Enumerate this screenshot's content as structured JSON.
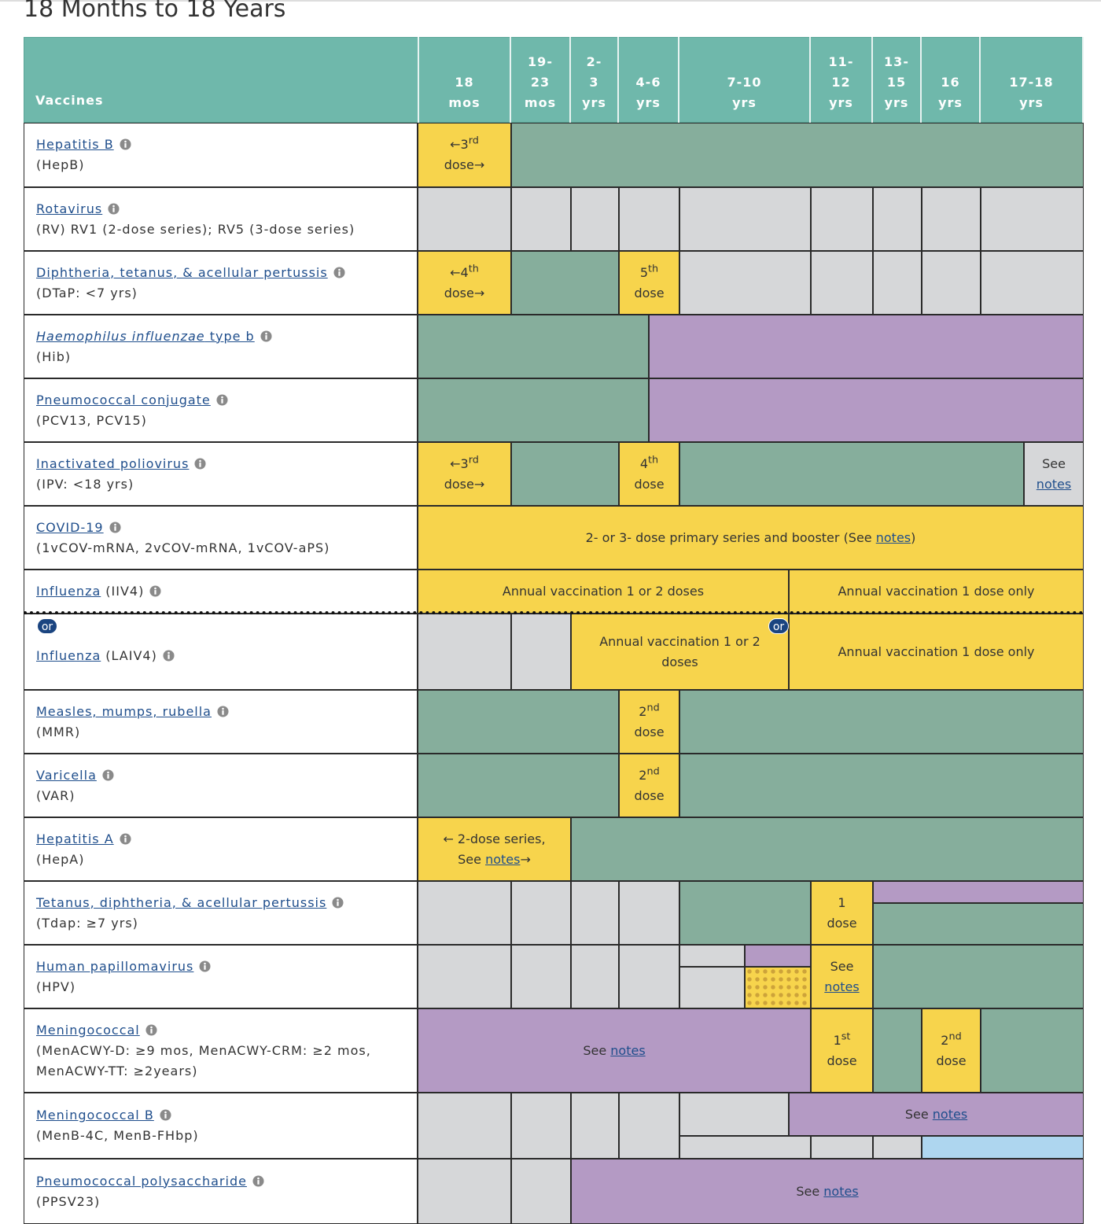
{
  "title": "18 Months to 18 Years",
  "header": {
    "vaccines": "Vaccines",
    "ages": [
      [
        "18",
        "mos"
      ],
      [
        "19-",
        "23",
        "mos"
      ],
      [
        "2-",
        "3",
        "yrs"
      ],
      [
        "4-6",
        "yrs"
      ],
      [
        "7-10",
        "yrs"
      ],
      [
        "11-",
        "12",
        "yrs"
      ],
      [
        "13-",
        "15",
        "yrs"
      ],
      [
        "16",
        "yrs"
      ],
      [
        "17-18",
        "yrs"
      ]
    ]
  },
  "rows": [
    {
      "name": "Hepatitis B",
      "abbr": "(HepB)",
      "cells": [
        {
          "lines": [
            [
              "←3",
              {
                "sup": "rd"
              }
            ],
            [
              "dose→"
            ]
          ]
        }
      ]
    },
    {
      "name": "Rotavirus",
      "abbr": "(RV) RV1 (2-dose series); RV5 (3-dose series)",
      "cells": []
    },
    {
      "name": "Diphtheria, tetanus, & acellular pertussis",
      "abbr": "(DTaP: <7 yrs)",
      "cells": [
        {
          "lines": [
            [
              "←4",
              {
                "sup": "th"
              }
            ],
            [
              "dose→"
            ]
          ]
        },
        {
          "lines": [
            [
              "5",
              {
                "sup": "th"
              }
            ],
            [
              "dose"
            ]
          ]
        }
      ]
    },
    {
      "name": {
        "italic": "Haemophilus influenzae",
        "text": " type b"
      },
      "abbr": "(Hib)",
      "cells": []
    },
    {
      "name": "Pneumococcal conjugate",
      "abbr": "(PCV13, PCV15)",
      "cells": []
    },
    {
      "name": "Inactivated poliovirus",
      "abbr": "(IPV: <18 yrs)",
      "cells": [
        {
          "lines": [
            [
              "←3",
              {
                "sup": "rd"
              }
            ],
            [
              "dose→"
            ]
          ]
        },
        {
          "lines": [
            [
              "4",
              {
                "sup": "th"
              }
            ],
            [
              "dose"
            ]
          ]
        },
        {
          "lines": [
            [
              "See"
            ],
            [
              {
                "link": "notes"
              }
            ]
          ]
        }
      ]
    },
    {
      "name": "COVID-19",
      "abbr": "(1vCOV-mRNA, 2vCOV-mRNA, 1vCOV-aPS)",
      "cells": [
        {
          "lines": [
            [
              "2- or 3- dose primary series and booster (See ",
              {
                "link": "notes"
              },
              ")"
            ]
          ]
        }
      ]
    },
    {
      "name": "Influenza",
      "abbr": "(IIV4)",
      "abbr_inline": true,
      "cells": [
        {
          "lines": [
            [
              "Annual vaccination 1 or 2 doses"
            ]
          ]
        },
        {
          "lines": [
            [
              "Annual vaccination 1 dose only"
            ]
          ]
        }
      ]
    },
    {
      "name": "Influenza",
      "abbr": "(LAIV4)",
      "abbr_inline": true,
      "or": "or",
      "cells": [
        {
          "lines": [
            [
              "Annual vaccination 1 or 2"
            ],
            [
              "doses"
            ]
          ]
        },
        {
          "lines": [
            [
              "Annual vaccination 1 dose only"
            ]
          ]
        }
      ]
    },
    {
      "name": "Measles, mumps, rubella",
      "abbr": "(MMR)",
      "cells": [
        {
          "lines": [
            [
              "2",
              {
                "sup": "nd"
              }
            ],
            [
              "dose"
            ]
          ]
        }
      ]
    },
    {
      "name": "Varicella",
      "abbr": "(VAR)",
      "cells": [
        {
          "lines": [
            [
              "2",
              {
                "sup": "nd"
              }
            ],
            [
              "dose"
            ]
          ]
        }
      ]
    },
    {
      "name": "Hepatitis A",
      "abbr": "(HepA)",
      "cells": [
        {
          "lines": [
            [
              "← 2-dose series,"
            ],
            [
              "See ",
              {
                "link": "notes"
              },
              "→"
            ]
          ]
        }
      ]
    },
    {
      "name": "Tetanus, diphtheria, & acellular pertussis",
      "abbr": "(Tdap: ≥7 yrs)",
      "cells": [
        {
          "lines": [
            [
              "1"
            ],
            [
              "dose"
            ]
          ]
        }
      ]
    },
    {
      "name": "Human papillomavirus",
      "abbr": "(HPV)",
      "cells": [
        {
          "lines": [
            [
              "See"
            ],
            [
              {
                "link": "notes"
              }
            ]
          ]
        }
      ]
    },
    {
      "name": "Meningococcal",
      "abbr": "(MenACWY-D: ≥9 mos, MenACWY-CRM: ≥2 mos, MenACWY-TT: ≥2years)",
      "cells": [
        {
          "lines": [
            [
              "See ",
              {
                "link": "notes"
              }
            ]
          ]
        },
        {
          "lines": [
            [
              "1",
              {
                "sup": "st"
              }
            ],
            [
              "dose"
            ]
          ]
        },
        {
          "lines": [
            [
              "2",
              {
                "sup": "nd"
              }
            ],
            [
              "dose"
            ]
          ]
        }
      ]
    },
    {
      "name": "Meningococcal B",
      "abbr": "(MenB-4C, MenB-FHbp)",
      "cells": [
        {
          "lines": [
            [
              "See ",
              {
                "link": "notes"
              }
            ]
          ]
        }
      ]
    },
    {
      "name": "Pneumococcal polysaccharide",
      "abbr": "(PPSV23)",
      "cells": [
        {
          "lines": [
            [
              "See ",
              {
                "link": "notes"
              }
            ]
          ]
        }
      ]
    }
  ]
}
